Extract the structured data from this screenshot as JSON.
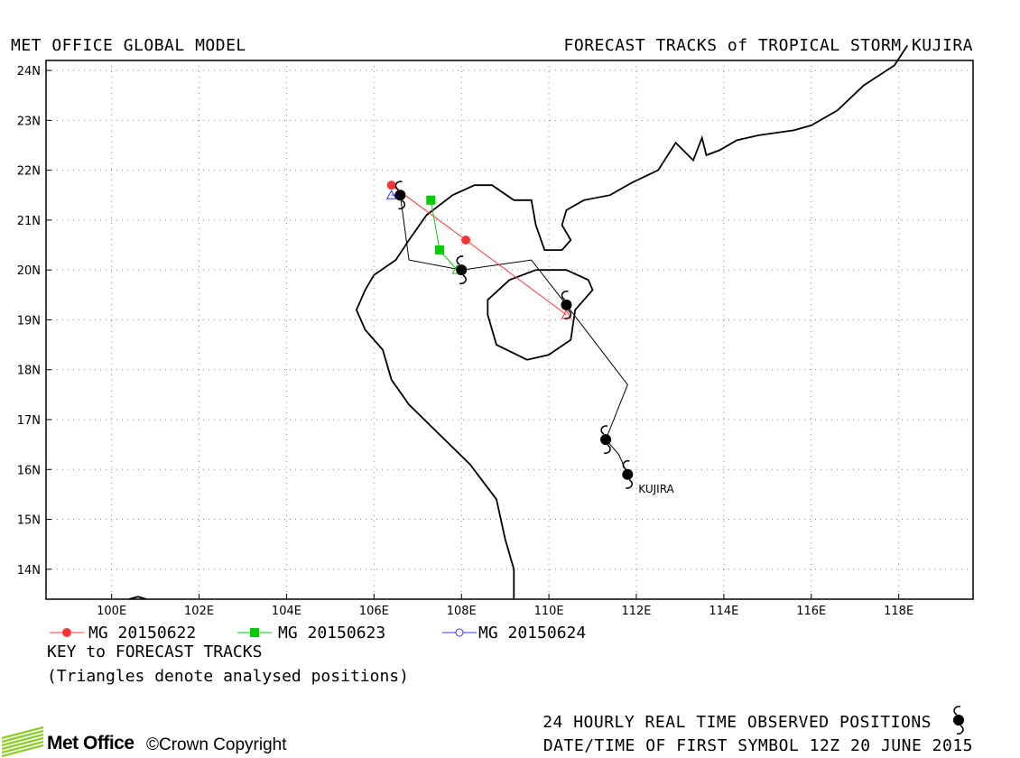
{
  "header": {
    "left_title": "MET OFFICE GLOBAL MODEL",
    "right_title": "FORECAST TRACKS of TROPICAL STORM KUJIRA"
  },
  "map": {
    "lon_range": [
      98.5,
      119.7
    ],
    "lat_range": [
      13.4,
      24.2
    ],
    "lat_ticks": [
      "14N",
      "15N",
      "16N",
      "17N",
      "18N",
      "19N",
      "20N",
      "21N",
      "22N",
      "23N",
      "24N"
    ],
    "lon_ticks": [
      "100E",
      "102E",
      "104E",
      "106E",
      "108E",
      "110E",
      "112E",
      "114E",
      "116E",
      "118E"
    ],
    "grid": "dotted"
  },
  "storm": {
    "label": "KUJIRA",
    "observed_positions": [
      {
        "lon": 111.8,
        "lat": 15.9
      },
      {
        "lon": 111.3,
        "lat": 16.6
      },
      {
        "lon": 110.4,
        "lat": 19.3
      },
      {
        "lon": 108.0,
        "lat": 20.0
      },
      {
        "lon": 106.6,
        "lat": 21.5
      }
    ],
    "observed_track": [
      [
        111.8,
        15.9
      ],
      [
        111.6,
        16.3
      ],
      [
        111.3,
        16.6
      ],
      [
        111.8,
        17.7
      ],
      [
        110.4,
        19.3
      ],
      [
        109.6,
        20.2
      ],
      [
        108.0,
        20.0
      ],
      [
        106.8,
        20.2
      ],
      [
        106.6,
        21.5
      ]
    ]
  },
  "forecasts": [
    {
      "name": "MG 20150622",
      "color": "#ff3333",
      "marker": "circle",
      "points": [
        [
          110.4,
          19.1
        ],
        [
          108.1,
          20.6
        ],
        [
          106.4,
          21.7
        ]
      ]
    },
    {
      "name": "MG 20150623",
      "color": "#00cc00",
      "marker": "square",
      "points": [
        [
          107.9,
          20.0
        ],
        [
          107.5,
          20.4
        ],
        [
          107.3,
          21.4
        ]
      ]
    },
    {
      "name": "MG 20150624",
      "color": "#3333ff",
      "marker": "open-circle",
      "points": [
        [
          106.4,
          21.5
        ],
        [
          106.6,
          21.5
        ]
      ]
    }
  ],
  "legend": {
    "key_label": "KEY to FORECAST TRACKS",
    "triangle_note": "(Triangles denote analysed positions)"
  },
  "footer": {
    "observed_note": "24 HOURLY REAL TIME OBSERVED POSITIONS",
    "first_symbol": "DATE/TIME OF FIRST SYMBOL 12Z 20 JUNE 2015",
    "logo": "Met Office",
    "copyright": "Crown Copyright"
  },
  "colors": {
    "coastline": "#000000",
    "grid": "#888888"
  }
}
